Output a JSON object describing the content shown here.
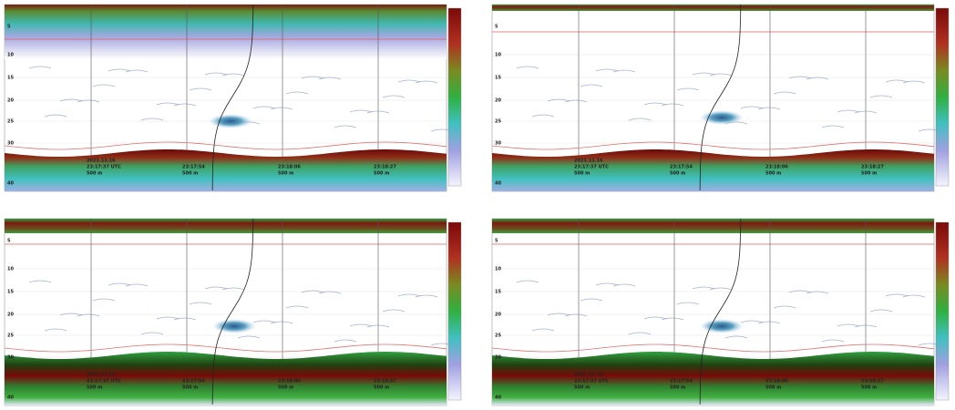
{
  "panels": [
    {
      "depth_labels": [
        "5",
        "10",
        "15",
        "20",
        "25",
        "30",
        "40"
      ],
      "time_marks": [
        {
          "date": "2021.11.16",
          "time": "23:17:37 UTC",
          "range": "500 m"
        },
        {
          "time": "23:17:54",
          "range": "500 m"
        },
        {
          "time": "23:18:06",
          "range": "500 m"
        },
        {
          "time": "23:18:27",
          "range": "500 m"
        }
      ]
    },
    {
      "depth_labels": [
        "5",
        "10",
        "15",
        "20",
        "25",
        "30",
        "40"
      ],
      "time_marks": [
        {
          "date": "2021.11.16",
          "time": "23:17:37 UTC",
          "range": "500 m"
        },
        {
          "time": "23:17:54",
          "range": "500 m"
        },
        {
          "time": "23:18:06",
          "range": "500 m"
        },
        {
          "time": "23:18:27",
          "range": "500 m"
        }
      ]
    },
    {
      "depth_labels": [
        "5",
        "10",
        "15",
        "20",
        "25",
        "30",
        "40"
      ],
      "time_marks": [
        {
          "date": "2021.11.16",
          "time": "23:17:37 UTC",
          "range": "500 m"
        },
        {
          "time": "23:17:54",
          "range": "500 m"
        },
        {
          "time": "23:18:06",
          "range": "500 m"
        },
        {
          "time": "23:18:27",
          "range": "500 m"
        }
      ]
    },
    {
      "depth_labels": [
        "5",
        "10",
        "15",
        "20",
        "25",
        "30",
        "40"
      ],
      "time_marks": [
        {
          "date": "2021.11.16",
          "time": "23:17:37 UTC",
          "range": "500 m"
        },
        {
          "time": "23:17:54",
          "range": "500 m"
        },
        {
          "time": "23:18:06",
          "range": "500 m"
        },
        {
          "time": "23:18:27",
          "range": "500 m"
        }
      ]
    }
  ]
}
